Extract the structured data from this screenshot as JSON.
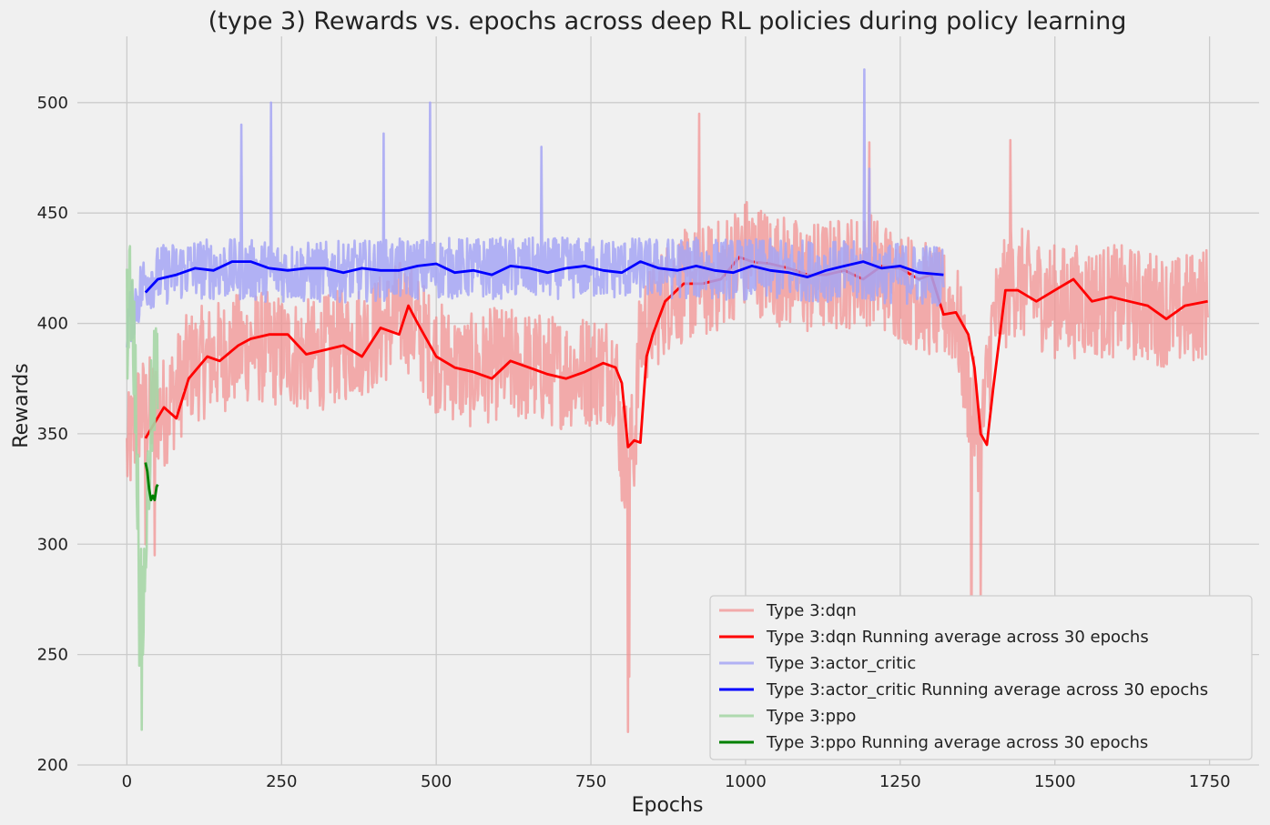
{
  "chart_data": {
    "type": "line",
    "title": "(type 3) Rewards vs. epochs across deep RL policies during policy learning",
    "xlabel": "Epochs",
    "ylabel": "Rewards",
    "xlim": [
      -80,
      1830
    ],
    "ylim": [
      200,
      530
    ],
    "xticks": [
      0,
      250,
      500,
      750,
      1000,
      1250,
      1500,
      1750
    ],
    "yticks": [
      200,
      250,
      300,
      350,
      400,
      450,
      500
    ],
    "grid": true,
    "legend_position": "lower-right",
    "series": [
      {
        "name": "Type 3:dqn",
        "color": "#f28b8b",
        "opacity": 0.7,
        "noise": 26,
        "x_range": [
          0,
          1747
        ],
        "anchors": [
          [
            0,
            340
          ],
          [
            20,
            360
          ],
          [
            60,
            360
          ],
          [
            100,
            380
          ],
          [
            200,
            390
          ],
          [
            300,
            385
          ],
          [
            400,
            395
          ],
          [
            450,
            405
          ],
          [
            500,
            385
          ],
          [
            550,
            378
          ],
          [
            600,
            382
          ],
          [
            700,
            378
          ],
          [
            790,
            380
          ],
          [
            800,
            340
          ],
          [
            820,
            345
          ],
          [
            830,
            395
          ],
          [
            880,
            415
          ],
          [
            950,
            420
          ],
          [
            1000,
            432
          ],
          [
            1050,
            425
          ],
          [
            1100,
            420
          ],
          [
            1200,
            425
          ],
          [
            1300,
            410
          ],
          [
            1340,
            405
          ],
          [
            1360,
            370
          ],
          [
            1380,
            345
          ],
          [
            1400,
            400
          ],
          [
            1430,
            420
          ],
          [
            1500,
            410
          ],
          [
            1600,
            410
          ],
          [
            1700,
            405
          ],
          [
            1747,
            410
          ]
        ],
        "spikes": [
          [
            810,
            215
          ],
          [
            812,
            240
          ],
          [
            1365,
            210
          ],
          [
            1380,
            275
          ],
          [
            925,
            495
          ],
          [
            1200,
            482
          ],
          [
            1428,
            483
          ],
          [
            30,
            300
          ],
          [
            45,
            295
          ]
        ]
      },
      {
        "name": "Type 3:dqn Running average across 30 epochs",
        "color": "#ff0000",
        "opacity": 1,
        "x_range": [
          30,
          1747
        ],
        "values_x": [
          30,
          45,
          60,
          80,
          100,
          130,
          150,
          180,
          200,
          230,
          260,
          290,
          320,
          350,
          380,
          410,
          440,
          455,
          470,
          500,
          530,
          560,
          590,
          620,
          650,
          680,
          710,
          740,
          770,
          790,
          800,
          810,
          820,
          830,
          840,
          850,
          870,
          900,
          930,
          960,
          990,
          1010,
          1040,
          1070,
          1100,
          1130,
          1160,
          1190,
          1220,
          1250,
          1280,
          1300,
          1320,
          1340,
          1360,
          1370,
          1380,
          1390,
          1400,
          1420,
          1440,
          1470,
          1500,
          1530,
          1560,
          1590,
          1620,
          1650,
          1680,
          1710,
          1747
        ],
        "values_y": [
          348,
          355,
          362,
          357,
          375,
          385,
          383,
          390,
          393,
          395,
          395,
          386,
          388,
          390,
          385,
          398,
          395,
          408,
          400,
          385,
          380,
          378,
          375,
          383,
          380,
          377,
          375,
          378,
          382,
          380,
          373,
          344,
          347,
          346,
          385,
          395,
          410,
          418,
          418,
          420,
          430,
          428,
          427,
          425,
          422,
          422,
          424,
          420,
          426,
          425,
          420,
          422,
          404,
          405,
          395,
          380,
          350,
          345,
          370,
          415,
          415,
          410,
          415,
          420,
          410,
          412,
          410,
          408,
          402,
          408,
          410
        ]
      },
      {
        "name": "Type 3:actor_critic",
        "color": "#a6a6f4",
        "opacity": 0.85,
        "noise": 14,
        "x_range": [
          0,
          1320
        ],
        "anchors": [
          [
            0,
            400
          ],
          [
            30,
            420
          ],
          [
            100,
            425
          ],
          [
            300,
            423
          ],
          [
            500,
            425
          ],
          [
            700,
            425
          ],
          [
            900,
            425
          ],
          [
            1100,
            424
          ],
          [
            1320,
            422
          ]
        ],
        "spikes": [
          [
            185,
            490
          ],
          [
            233,
            500
          ],
          [
            415,
            486
          ],
          [
            490,
            500
          ],
          [
            670,
            480
          ],
          [
            1192,
            515
          ],
          [
            1200,
            470
          ]
        ]
      },
      {
        "name": "Type 3:actor_critic Running average across 30 epochs",
        "color": "#0000ff",
        "opacity": 1,
        "x_range": [
          30,
          1320
        ],
        "values_x": [
          30,
          50,
          80,
          110,
          140,
          170,
          200,
          230,
          260,
          290,
          320,
          350,
          380,
          410,
          440,
          470,
          500,
          530,
          560,
          590,
          620,
          650,
          680,
          710,
          740,
          770,
          800,
          830,
          860,
          890,
          920,
          950,
          980,
          1010,
          1040,
          1070,
          1100,
          1130,
          1160,
          1190,
          1220,
          1250,
          1280,
          1320
        ],
        "values_y": [
          414,
          420,
          422,
          425,
          424,
          428,
          428,
          425,
          424,
          425,
          425,
          423,
          425,
          424,
          424,
          426,
          427,
          423,
          424,
          422,
          426,
          425,
          423,
          425,
          426,
          424,
          423,
          428,
          425,
          424,
          426,
          424,
          423,
          426,
          424,
          423,
          421,
          424,
          426,
          428,
          425,
          426,
          423,
          422
        ]
      },
      {
        "name": "Type 3:ppo",
        "color": "#a6d6a6",
        "opacity": 0.9,
        "noise": 30,
        "x_range": [
          0,
          50
        ],
        "anchors": [
          [
            0,
            400
          ],
          [
            8,
            420
          ],
          [
            15,
            360
          ],
          [
            20,
            300
          ],
          [
            25,
            260
          ],
          [
            30,
            300
          ],
          [
            40,
            360
          ],
          [
            50,
            380
          ]
        ],
        "spikes": [
          [
            24,
            216
          ],
          [
            20,
            245
          ],
          [
            5,
            435
          ]
        ]
      },
      {
        "name": "Type 3:ppo Running average across 30 epochs",
        "color": "#008000",
        "opacity": 1,
        "x_range": [
          30,
          50
        ],
        "values_x": [
          30,
          33,
          36,
          39,
          42,
          45,
          48,
          50
        ],
        "values_y": [
          337,
          333,
          325,
          320,
          322,
          320,
          326,
          327
        ]
      }
    ]
  }
}
